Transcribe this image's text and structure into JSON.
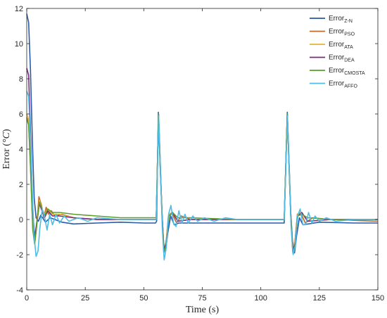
{
  "chart_data": {
    "type": "line",
    "xlabel": "Time (s)",
    "ylabel_main": "Error (",
    "ylabel_italic": "°C",
    "ylabel_end": ")",
    "xlim": [
      0,
      150
    ],
    "ylim": [
      -4,
      12
    ],
    "xticks": [
      0,
      25,
      50,
      75,
      100,
      125,
      150
    ],
    "yticks": [
      -4,
      -2,
      0,
      2,
      4,
      6,
      8,
      10,
      12
    ],
    "grid": false,
    "legend_position": "top-right",
    "series": [
      {
        "name_base": "Error",
        "name_sub": "Z-N",
        "color": "#2a5aa8",
        "points": [
          [
            0,
            11.7
          ],
          [
            0.8,
            11.2
          ],
          [
            1.6,
            8.5
          ],
          [
            2.4,
            4.5
          ],
          [
            3.2,
            1.2
          ],
          [
            4,
            0.1
          ],
          [
            5,
            -0.1
          ],
          [
            6,
            0.25
          ],
          [
            8,
            -0.15
          ],
          [
            10,
            0.1
          ],
          [
            15,
            -0.15
          ],
          [
            20,
            -0.25
          ],
          [
            30,
            -0.2
          ],
          [
            40,
            -0.15
          ],
          [
            50,
            -0.2
          ],
          [
            55,
            -0.2
          ],
          [
            55.5,
            -0.1
          ],
          [
            56.2,
            6.1
          ],
          [
            57,
            3.0
          ],
          [
            57.8,
            0.3
          ],
          [
            58.5,
            -1.4
          ],
          [
            59.3,
            -1.8
          ],
          [
            60.2,
            -0.8
          ],
          [
            61.5,
            0.2
          ],
          [
            63,
            -0.3
          ],
          [
            65,
            -0.2
          ],
          [
            75,
            -0.2
          ],
          [
            90,
            -0.2
          ],
          [
            110,
            -0.2
          ],
          [
            111.3,
            6.1
          ],
          [
            112,
            3.5
          ],
          [
            112.8,
            0.4
          ],
          [
            113.5,
            -1.2
          ],
          [
            114.4,
            -1.9
          ],
          [
            115.3,
            -0.9
          ],
          [
            116.5,
            0.1
          ],
          [
            118,
            -0.3
          ],
          [
            125,
            -0.15
          ],
          [
            140,
            -0.2
          ],
          [
            150,
            -0.2
          ]
        ]
      },
      {
        "name_base": "Error",
        "name_sub": "PSO",
        "color": "#c06a2b",
        "points": [
          [
            0,
            5.8
          ],
          [
            0.8,
            5.5
          ],
          [
            1.6,
            3.2
          ],
          [
            2.6,
            -0.4
          ],
          [
            3.4,
            -1.4
          ],
          [
            4.3,
            -0.3
          ],
          [
            5.2,
            1.3
          ],
          [
            6.3,
            0.8
          ],
          [
            7.3,
            0.1
          ],
          [
            8.3,
            0.7
          ],
          [
            9.3,
            0.3
          ],
          [
            10.5,
            0.5
          ],
          [
            12,
            0.2
          ],
          [
            15,
            0.3
          ],
          [
            20,
            0.1
          ],
          [
            30,
            0.0
          ],
          [
            40,
            0.0
          ],
          [
            50,
            0.0
          ],
          [
            55.3,
            0.0
          ],
          [
            56.3,
            6.0
          ],
          [
            57,
            3.2
          ],
          [
            57.8,
            0.2
          ],
          [
            58.5,
            -1.8
          ],
          [
            59.4,
            -1.5
          ],
          [
            60.5,
            0.2
          ],
          [
            62,
            0.4
          ],
          [
            64,
            -0.2
          ],
          [
            66,
            0.2
          ],
          [
            70,
            0.0
          ],
          [
            90,
            0.0
          ],
          [
            110,
            0.0
          ],
          [
            111.3,
            6.0
          ],
          [
            112,
            3.3
          ],
          [
            112.8,
            0.2
          ],
          [
            113.6,
            -1.8
          ],
          [
            114.5,
            -1.4
          ],
          [
            115.6,
            0.3
          ],
          [
            117,
            0.4
          ],
          [
            119,
            -0.2
          ],
          [
            122,
            0.1
          ],
          [
            130,
            0.0
          ],
          [
            150,
            -0.1
          ]
        ]
      },
      {
        "name_base": "Error",
        "name_sub": "ATA",
        "color": "#e0b53a",
        "points": [
          [
            0,
            6.0
          ],
          [
            0.8,
            5.7
          ],
          [
            1.6,
            3.0
          ],
          [
            2.6,
            -0.5
          ],
          [
            3.4,
            -1.2
          ],
          [
            4.4,
            0.0
          ],
          [
            5.4,
            1.1
          ],
          [
            6.5,
            0.6
          ],
          [
            7.6,
            0.3
          ],
          [
            9,
            0.6
          ],
          [
            11,
            0.3
          ],
          [
            14,
            0.3
          ],
          [
            20,
            0.1
          ],
          [
            30,
            0.0
          ],
          [
            40,
            0.0
          ],
          [
            50,
            0.0
          ],
          [
            55.3,
            0.0
          ],
          [
            56.3,
            6.0
          ],
          [
            57,
            3.4
          ],
          [
            57.8,
            0.3
          ],
          [
            58.6,
            -1.6
          ],
          [
            59.5,
            -1.3
          ],
          [
            60.8,
            0.3
          ],
          [
            62.3,
            0.4
          ],
          [
            64.5,
            -0.1
          ],
          [
            70,
            0.0
          ],
          [
            90,
            0.0
          ],
          [
            110,
            0.0
          ],
          [
            111.3,
            6.0
          ],
          [
            112,
            3.4
          ],
          [
            112.8,
            0.3
          ],
          [
            113.7,
            -1.6
          ],
          [
            114.6,
            -1.3
          ],
          [
            115.8,
            0.3
          ],
          [
            117.5,
            0.4
          ],
          [
            120,
            -0.1
          ],
          [
            130,
            0.0
          ],
          [
            150,
            0.0
          ]
        ]
      },
      {
        "name_base": "Error",
        "name_sub": "DEA",
        "color": "#7a2a7e",
        "points": [
          [
            0,
            8.6
          ],
          [
            0.8,
            8.2
          ],
          [
            1.6,
            5.0
          ],
          [
            2.6,
            0.5
          ],
          [
            3.4,
            -1.0
          ],
          [
            4.4,
            -0.1
          ],
          [
            5.4,
            0.9
          ],
          [
            6.5,
            0.5
          ],
          [
            7.6,
            0.1
          ],
          [
            9,
            0.5
          ],
          [
            11,
            0.2
          ],
          [
            14,
            0.2
          ],
          [
            20,
            0.1
          ],
          [
            30,
            0.0
          ],
          [
            40,
            0.0
          ],
          [
            50,
            0.0
          ],
          [
            55.3,
            0.0
          ],
          [
            56.3,
            6.0
          ],
          [
            57,
            3.3
          ],
          [
            57.8,
            0.3
          ],
          [
            58.6,
            -1.7
          ],
          [
            59.5,
            -1.4
          ],
          [
            60.8,
            0.2
          ],
          [
            62.3,
            0.4
          ],
          [
            64.5,
            -0.1
          ],
          [
            70,
            0.0
          ],
          [
            90,
            0.0
          ],
          [
            110,
            0.0
          ],
          [
            111.3,
            6.0
          ],
          [
            112,
            3.3
          ],
          [
            112.8,
            0.3
          ],
          [
            113.7,
            -1.7
          ],
          [
            114.6,
            -1.4
          ],
          [
            115.8,
            0.2
          ],
          [
            117.5,
            0.4
          ],
          [
            120,
            -0.1
          ],
          [
            130,
            0.0
          ],
          [
            150,
            0.0
          ]
        ]
      },
      {
        "name_base": "Error",
        "name_sub": "CMOSTA",
        "color": "#5c9e2e",
        "points": [
          [
            0,
            5.7
          ],
          [
            0.8,
            5.4
          ],
          [
            1.6,
            3.0
          ],
          [
            2.6,
            -0.6
          ],
          [
            3.4,
            -1.4
          ],
          [
            4.4,
            -0.2
          ],
          [
            5.4,
            1.0
          ],
          [
            6.5,
            0.6
          ],
          [
            7.6,
            0.2
          ],
          [
            9,
            0.6
          ],
          [
            11,
            0.4
          ],
          [
            14,
            0.4
          ],
          [
            20,
            0.3
          ],
          [
            30,
            0.2
          ],
          [
            40,
            0.1
          ],
          [
            50,
            0.1
          ],
          [
            55.3,
            0.1
          ],
          [
            56.3,
            6.0
          ],
          [
            57,
            3.2
          ],
          [
            57.8,
            0.2
          ],
          [
            58.6,
            -1.9
          ],
          [
            59.5,
            -1.5
          ],
          [
            60.8,
            0.2
          ],
          [
            62.3,
            0.4
          ],
          [
            64.5,
            0.1
          ],
          [
            70,
            0.1
          ],
          [
            90,
            0.0
          ],
          [
            110,
            0.0
          ],
          [
            111.3,
            6.0
          ],
          [
            112,
            3.2
          ],
          [
            112.8,
            0.2
          ],
          [
            113.7,
            -1.9
          ],
          [
            114.6,
            -1.5
          ],
          [
            115.8,
            0.2
          ],
          [
            117.5,
            0.3
          ],
          [
            120,
            0.1
          ],
          [
            130,
            0.0
          ],
          [
            150,
            0.0
          ]
        ]
      },
      {
        "name_base": "Error",
        "name_sub": "AFFO",
        "color": "#4dbde8",
        "points": [
          [
            0,
            7.3
          ],
          [
            0.8,
            7.0
          ],
          [
            1.6,
            4.5
          ],
          [
            2.6,
            0.8
          ],
          [
            3.2,
            -1.0
          ],
          [
            4,
            -2.1
          ],
          [
            4.8,
            -1.8
          ],
          [
            5.6,
            -0.5
          ],
          [
            6.6,
            0.6
          ],
          [
            7.7,
            0.1
          ],
          [
            8.7,
            -0.6
          ],
          [
            9.8,
            0.3
          ],
          [
            11,
            -0.3
          ],
          [
            12.5,
            0.3
          ],
          [
            14,
            -0.2
          ],
          [
            16,
            0.2
          ],
          [
            18,
            -0.1
          ],
          [
            22,
            0.1
          ],
          [
            26,
            -0.1
          ],
          [
            30,
            0.1
          ],
          [
            40,
            0.0
          ],
          [
            50,
            0.0
          ],
          [
            55.3,
            0.0
          ],
          [
            56.4,
            5.9
          ],
          [
            57.1,
            3.0
          ],
          [
            57.9,
            -0.5
          ],
          [
            58.7,
            -2.3
          ],
          [
            59.6,
            -1.6
          ],
          [
            60.6,
            0.3
          ],
          [
            61.6,
            0.8
          ],
          [
            62.7,
            -0.2
          ],
          [
            63.8,
            -0.4
          ],
          [
            65,
            0.5
          ],
          [
            66.3,
            -0.2
          ],
          [
            67.6,
            0.3
          ],
          [
            69,
            -0.2
          ],
          [
            71,
            0.2
          ],
          [
            73,
            -0.1
          ],
          [
            76,
            0.1
          ],
          [
            80,
            -0.1
          ],
          [
            85,
            0.1
          ],
          [
            90,
            0.0
          ],
          [
            100,
            0.0
          ],
          [
            110,
            0.0
          ],
          [
            111.4,
            5.9
          ],
          [
            112.1,
            3.0
          ],
          [
            112.9,
            -0.4
          ],
          [
            113.8,
            -2.0
          ],
          [
            114.7,
            -1.5
          ],
          [
            115.7,
            0.2
          ],
          [
            116.8,
            0.6
          ],
          [
            118,
            -0.3
          ],
          [
            119.2,
            -0.3
          ],
          [
            120.4,
            0.4
          ],
          [
            121.8,
            -0.2
          ],
          [
            123.2,
            0.2
          ],
          [
            125,
            -0.1
          ],
          [
            128,
            0.1
          ],
          [
            132,
            -0.1
          ],
          [
            140,
            0.0
          ],
          [
            150,
            0.0
          ]
        ]
      }
    ]
  }
}
